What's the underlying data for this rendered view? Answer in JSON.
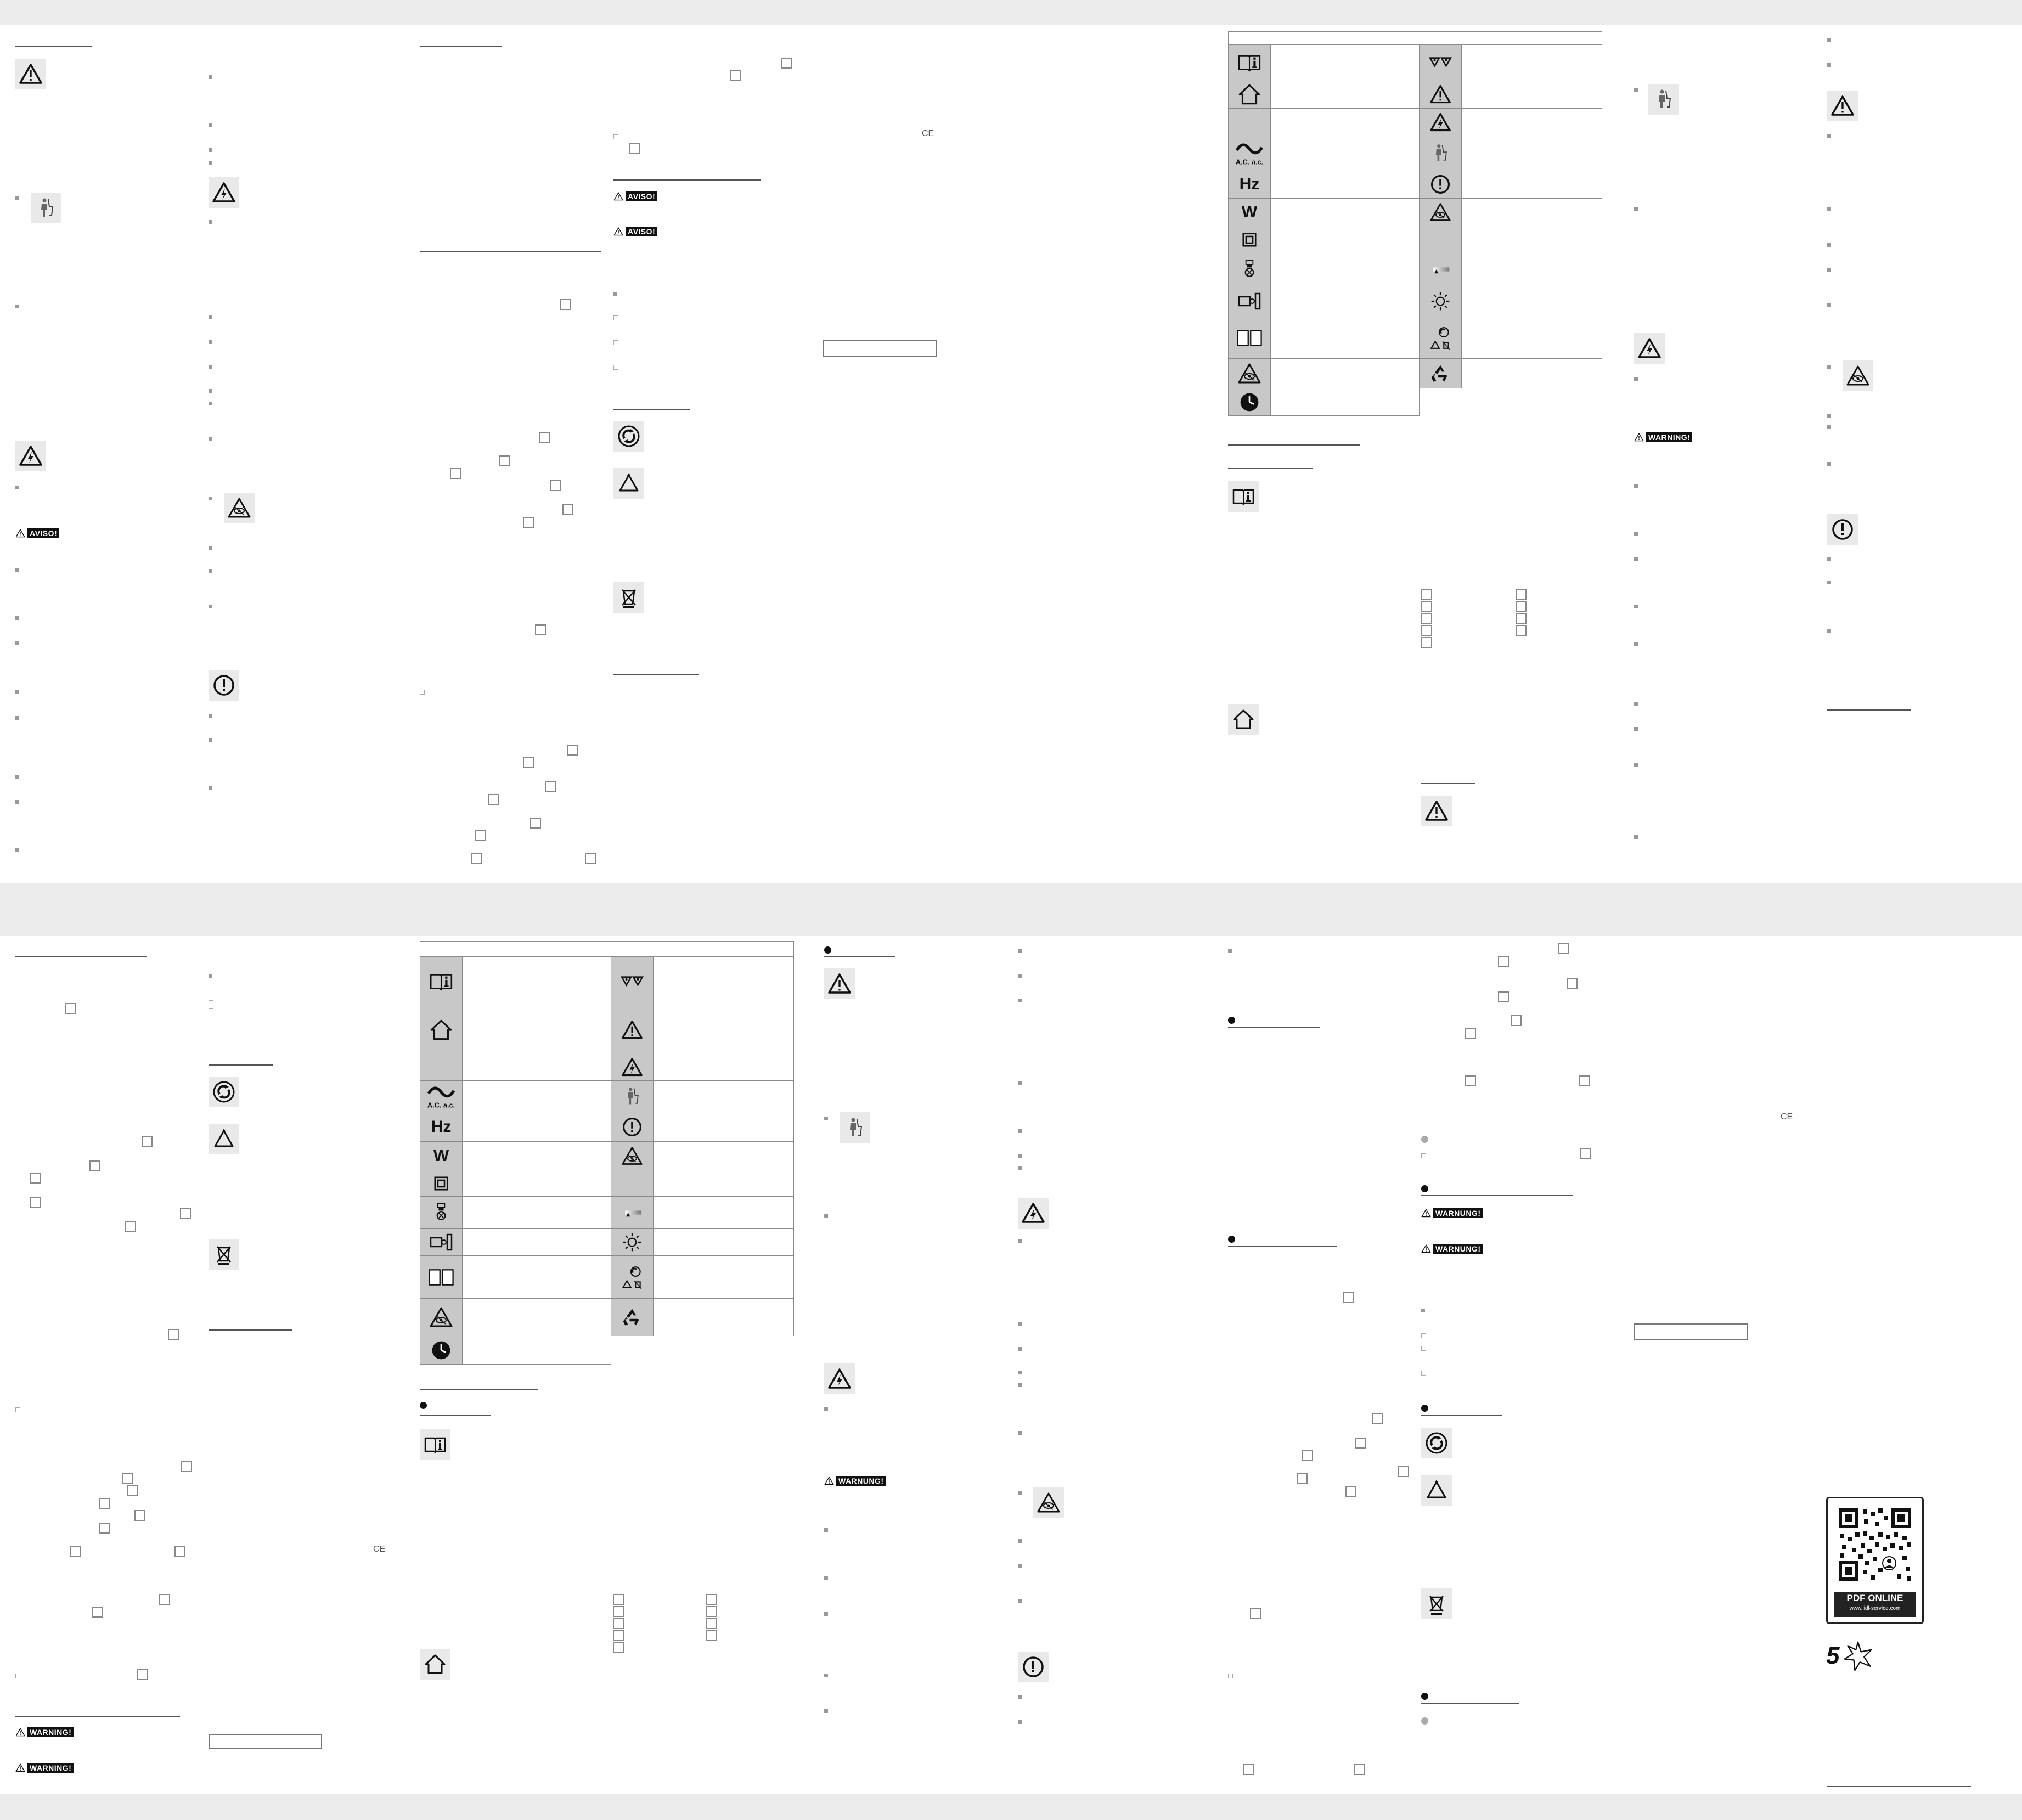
{
  "warnings": {
    "aviso": "AVISO!",
    "warning": "WARNING!",
    "warnung": "WARNUNG!"
  },
  "symbols": {
    "ac": "A.C. a.c.",
    "hz": "Hz",
    "w": "W"
  },
  "marks": {
    "ce": "CE"
  },
  "qr": {
    "title": "PDF ONLINE",
    "url": "www.lidl-service.com"
  },
  "rating": {
    "number": "5"
  },
  "icons": [
    "warning-triangle-icon",
    "electric-hazard-icon",
    "child-hazard-icon",
    "info-exclamation-icon",
    "manual-info-icon",
    "indoor-use-house-icon",
    "alternating-current-icon",
    "protection-class-icon",
    "light-bulb-icon",
    "projector-icon",
    "double-box-icon",
    "eye-hazard-icon",
    "timer-clock-icon",
    "green-dot-recycling-icon",
    "recycle-triangle-icon",
    "weee-bin-icon",
    "recycle-arrows-icon",
    "led-light-icon",
    "brightness-icon"
  ]
}
